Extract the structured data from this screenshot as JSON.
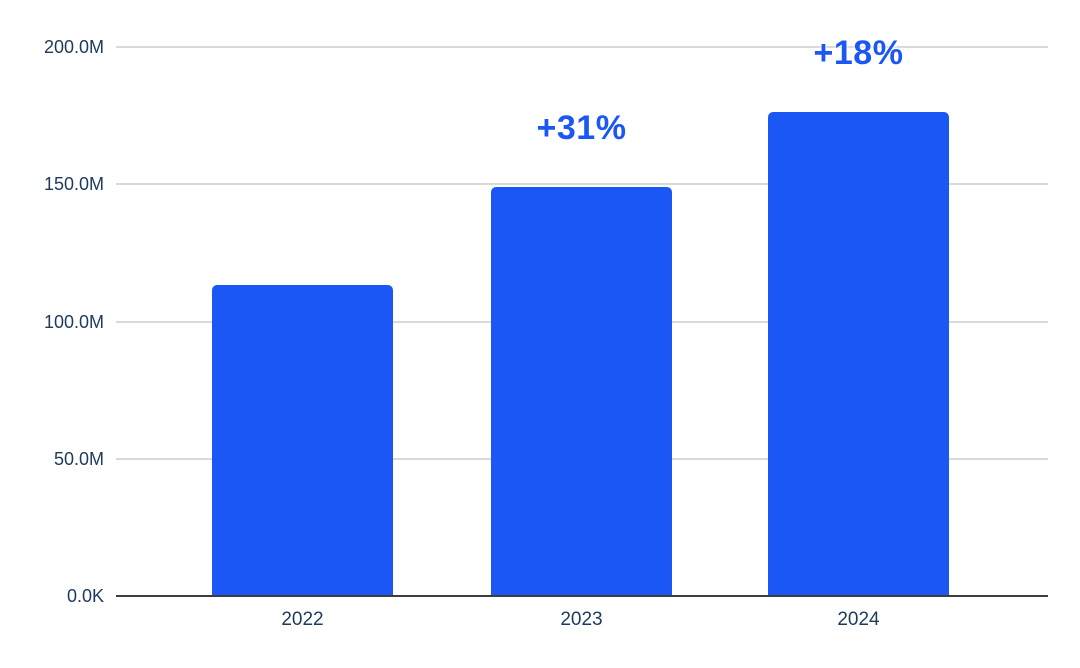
{
  "chart_data": {
    "type": "bar",
    "title": "",
    "categories": [
      "2022",
      "2023",
      "2024"
    ],
    "values": [
      113.4,
      149.0,
      176.5
    ],
    "values_unit": "millions",
    "annotations": [
      "",
      "+31%",
      "+18%"
    ],
    "y_ticks": [
      {
        "value": 0,
        "label": "0.0K"
      },
      {
        "value": 50,
        "label": "50.0M"
      },
      {
        "value": 100,
        "label": "100.0M"
      },
      {
        "value": 150,
        "label": "150.0M"
      },
      {
        "value": 200,
        "label": "200.0M"
      }
    ],
    "ylim": [
      0,
      200
    ],
    "xlabel": "",
    "ylabel": "",
    "grid": true,
    "legend": false
  },
  "colors": {
    "bar": "#1b57f5",
    "annotation": "#1b57f5",
    "axis_label": "#1e3a5c",
    "gridline": "#d9d9d9",
    "baseline": "#3d3d3d",
    "background": "#ffffff"
  }
}
